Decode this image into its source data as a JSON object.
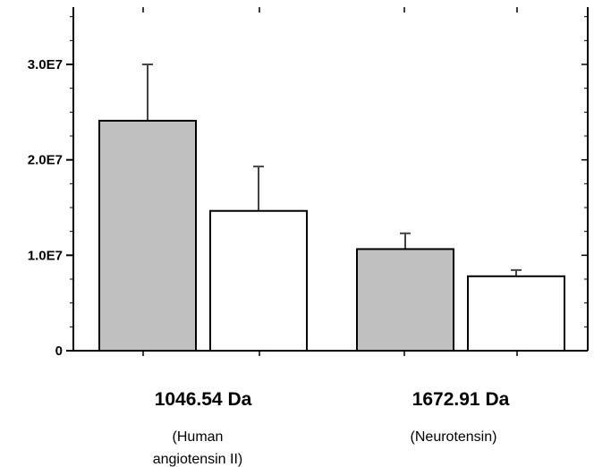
{
  "chart_data": {
    "type": "bar",
    "categories": [
      {
        "label": "1046.54 Da",
        "sublabel_lines": [
          "(Human",
          "angiotensin II)"
        ]
      },
      {
        "label": "1672.91 Da",
        "sublabel_lines": [
          "(Neurotensin)"
        ]
      }
    ],
    "series": [
      {
        "values": [
          24100000,
          10650000
        ],
        "errors": [
          5900000,
          1650000
        ],
        "color": "#c0c0c0"
      },
      {
        "values": [
          14650000,
          7800000
        ],
        "errors": [
          4650000,
          650000
        ],
        "color": "#ffffff"
      }
    ],
    "ylim": [
      0,
      36000000
    ],
    "yticks": [
      {
        "value": 0,
        "label": "0"
      },
      {
        "value": 10000000,
        "label": "1.0E7"
      },
      {
        "value": 20000000,
        "label": "2.0E7"
      },
      {
        "value": 30000000,
        "label": "3.0E7"
      }
    ],
    "grid": false,
    "legend": "none"
  }
}
